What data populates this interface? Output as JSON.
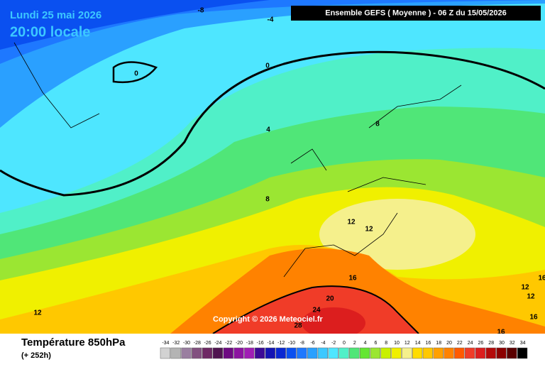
{
  "header": {
    "date": "Lundi 25 mai 2026",
    "time": "20:00 locale",
    "run": "Ensemble GEFS  ( Moyenne )  -  06 Z du 15/05/2026"
  },
  "footer": {
    "title": "Température 850hPa",
    "lead": "(+ 252h)",
    "copyright": "Copyright © 2026 Meteociel.fr"
  },
  "contour_labels": [
    "-8",
    "-4",
    "0",
    "0",
    "4",
    "8",
    "8",
    "12",
    "12",
    "12",
    "16",
    "20",
    "24",
    "28",
    "12",
    "12",
    "16",
    "16",
    "16"
  ],
  "legend": {
    "labels": [
      -34,
      -32,
      -30,
      -28,
      -26,
      -24,
      -22,
      -20,
      -18,
      -16,
      -14,
      -12,
      -10,
      -8,
      -6,
      -4,
      -2,
      0,
      2,
      4,
      6,
      8,
      10,
      12,
      14,
      16,
      18,
      20,
      22,
      24,
      26,
      28,
      30,
      32,
      34
    ],
    "colors": [
      "#d2d2d2",
      "#b4b4b4",
      "#9a7fa0",
      "#82507f",
      "#6e2864",
      "#501450",
      "#6e0a82",
      "#8c14a0",
      "#a01eb4",
      "#3c0a96",
      "#1414b4",
      "#0a28d2",
      "#0a50f0",
      "#1e78ff",
      "#2aa0ff",
      "#3cc8ff",
      "#4ee6ff",
      "#50f0c8",
      "#50e678",
      "#64e632",
      "#9be632",
      "#c8f000",
      "#f0f000",
      "#f5f08c",
      "#ffdc00",
      "#ffc800",
      "#ffa000",
      "#ff8200",
      "#ff5a00",
      "#f03c28",
      "#dc1e1e",
      "#b40a0a",
      "#8c0000",
      "#5a0000",
      "#000000"
    ]
  }
}
